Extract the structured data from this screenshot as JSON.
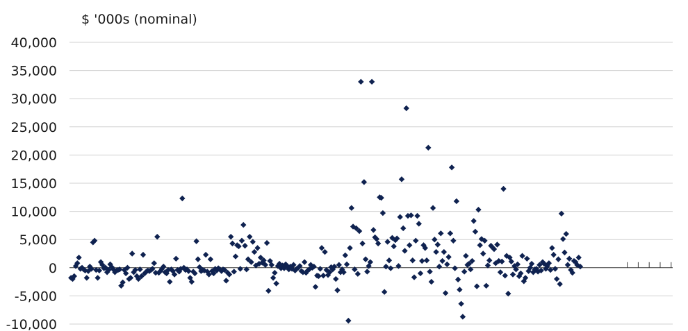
{
  "chart_data": {
    "type": "scatter",
    "unit_label": "$ '000s (nominal)",
    "ylim": [
      -10000,
      40000
    ],
    "yticks": [
      40000,
      35000,
      30000,
      25000,
      20000,
      15000,
      10000,
      5000,
      0,
      -5000,
      -10000
    ],
    "ytick_labels": [
      "40,000",
      "35,000",
      "30,000",
      "25,000",
      "20,000",
      "15,000",
      "10,000",
      "5,000",
      "0",
      "-5,000",
      "-10,000"
    ],
    "grid": true,
    "legend": "none",
    "marker_color": "#0f2250",
    "grid_color": "#d0d0d0",
    "axis_color": "#3a3a3a",
    "xlim": [
      0,
      385
    ],
    "x_tick_positions": [
      356,
      363,
      370,
      377,
      384
    ],
    "points": [
      [
        1,
        -1800
      ],
      [
        2,
        -2000
      ],
      [
        3,
        -1500
      ],
      [
        4,
        300
      ],
      [
        5,
        800
      ],
      [
        6,
        1800
      ],
      [
        7,
        -200
      ],
      [
        8,
        0
      ],
      [
        9,
        -300
      ],
      [
        10,
        -500
      ],
      [
        11,
        -1800
      ],
      [
        12,
        -600
      ],
      [
        13,
        200
      ],
      [
        14,
        -200
      ],
      [
        15,
        4500
      ],
      [
        16,
        4800
      ],
      [
        17,
        -400
      ],
      [
        18,
        -1800
      ],
      [
        19,
        -500
      ],
      [
        20,
        1000
      ],
      [
        21,
        500
      ],
      [
        22,
        -100
      ],
      [
        23,
        0
      ],
      [
        24,
        -800
      ],
      [
        25,
        -400
      ],
      [
        26,
        600
      ],
      [
        27,
        100
      ],
      [
        28,
        -300
      ],
      [
        29,
        -800
      ],
      [
        30,
        -500
      ],
      [
        31,
        -400
      ],
      [
        32,
        -300
      ],
      [
        33,
        -3200
      ],
      [
        34,
        -2600
      ],
      [
        35,
        -400
      ],
      [
        36,
        -1000
      ],
      [
        37,
        0
      ],
      [
        38,
        -2000
      ],
      [
        39,
        -1800
      ],
      [
        40,
        2500
      ],
      [
        41,
        -800
      ],
      [
        42,
        -400
      ],
      [
        43,
        -1500
      ],
      [
        44,
        -2000
      ],
      [
        45,
        -300
      ],
      [
        46,
        -1500
      ],
      [
        47,
        2300
      ],
      [
        48,
        -1000
      ],
      [
        49,
        -700
      ],
      [
        50,
        -500
      ],
      [
        51,
        -600
      ],
      [
        52,
        -400
      ],
      [
        53,
        -200
      ],
      [
        54,
        800
      ],
      [
        55,
        -900
      ],
      [
        56,
        5500
      ],
      [
        57,
        -900
      ],
      [
        58,
        -600
      ],
      [
        59,
        -200
      ],
      [
        60,
        200
      ],
      [
        61,
        -800
      ],
      [
        62,
        -1000
      ],
      [
        63,
        -400
      ],
      [
        64,
        -2500
      ],
      [
        65,
        -300
      ],
      [
        66,
        -600
      ],
      [
        67,
        -1200
      ],
      [
        68,
        1600
      ],
      [
        69,
        -400
      ],
      [
        70,
        -700
      ],
      [
        71,
        -200
      ],
      [
        72,
        12300
      ],
      [
        73,
        0
      ],
      [
        74,
        -400
      ],
      [
        75,
        -300
      ],
      [
        76,
        -600
      ],
      [
        77,
        -1800
      ],
      [
        78,
        -2500
      ],
      [
        79,
        -700
      ],
      [
        80,
        -1000
      ],
      [
        81,
        4700
      ],
      [
        82,
        1500
      ],
      [
        83,
        100
      ],
      [
        84,
        -600
      ],
      [
        85,
        -400
      ],
      [
        86,
        -500
      ],
      [
        87,
        2300
      ],
      [
        88,
        -700
      ],
      [
        89,
        -1200
      ],
      [
        90,
        1500
      ],
      [
        91,
        -600
      ],
      [
        92,
        -1000
      ],
      [
        93,
        -200
      ],
      [
        94,
        -500
      ],
      [
        95,
        -100
      ],
      [
        96,
        -300
      ],
      [
        97,
        -600
      ],
      [
        98,
        -300
      ],
      [
        99,
        -400
      ],
      [
        100,
        -2300
      ],
      [
        101,
        -900
      ],
      [
        102,
        -1200
      ],
      [
        103,
        5500
      ],
      [
        104,
        4300
      ],
      [
        105,
        -700
      ],
      [
        106,
        2000
      ],
      [
        107,
        4000
      ],
      [
        108,
        3800
      ],
      [
        109,
        -200
      ],
      [
        110,
        4800
      ],
      [
        111,
        7600
      ],
      [
        112,
        3900
      ],
      [
        113,
        -300
      ],
      [
        114,
        1500
      ],
      [
        115,
        5500
      ],
      [
        116,
        1000
      ],
      [
        117,
        4600
      ],
      [
        118,
        2800
      ],
      [
        119,
        400
      ],
      [
        120,
        3500
      ],
      [
        121,
        700
      ],
      [
        122,
        1800
      ],
      [
        123,
        900
      ],
      [
        124,
        1300
      ],
      [
        125,
        500
      ],
      [
        126,
        4400
      ],
      [
        127,
        -4100
      ],
      [
        128,
        1200
      ],
      [
        129,
        500
      ],
      [
        130,
        -1800
      ],
      [
        131,
        -900
      ],
      [
        132,
        -2800
      ],
      [
        133,
        300
      ],
      [
        134,
        700
      ],
      [
        135,
        -100
      ],
      [
        136,
        400
      ],
      [
        137,
        -100
      ],
      [
        138,
        600
      ],
      [
        139,
        300
      ],
      [
        140,
        -300
      ],
      [
        141,
        200
      ],
      [
        142,
        -200
      ],
      [
        143,
        500
      ],
      [
        144,
        -500
      ],
      [
        145,
        -200
      ],
      [
        146,
        0
      ],
      [
        147,
        300
      ],
      [
        148,
        -600
      ],
      [
        149,
        -800
      ],
      [
        150,
        1000
      ],
      [
        151,
        -900
      ],
      [
        152,
        -500
      ],
      [
        153,
        -300
      ],
      [
        154,
        500
      ],
      [
        155,
        0
      ],
      [
        156,
        200
      ],
      [
        157,
        -3400
      ],
      [
        158,
        -1400
      ],
      [
        159,
        -1500
      ],
      [
        160,
        -200
      ],
      [
        161,
        3500
      ],
      [
        162,
        -1400
      ],
      [
        163,
        2800
      ],
      [
        164,
        -400
      ],
      [
        165,
        -1300
      ],
      [
        166,
        -800
      ],
      [
        167,
        100
      ],
      [
        168,
        -300
      ],
      [
        169,
        200
      ],
      [
        170,
        -2000
      ],
      [
        171,
        -4000
      ],
      [
        172,
        500
      ],
      [
        173,
        -800
      ],
      [
        174,
        -300
      ],
      [
        175,
        -800
      ],
      [
        176,
        2200
      ],
      [
        177,
        600
      ],
      [
        178,
        -9400
      ],
      [
        179,
        3500
      ],
      [
        180,
        10600
      ],
      [
        181,
        7300
      ],
      [
        182,
        -300
      ],
      [
        183,
        7000
      ],
      [
        184,
        -1100
      ],
      [
        185,
        6500
      ],
      [
        186,
        33000
      ],
      [
        187,
        4300
      ],
      [
        188,
        15200
      ],
      [
        189,
        1500
      ],
      [
        190,
        -700
      ],
      [
        191,
        300
      ],
      [
        192,
        1000
      ],
      [
        193,
        33000
      ],
      [
        194,
        6700
      ],
      [
        195,
        5400
      ],
      [
        196,
        5100
      ],
      [
        197,
        4300
      ],
      [
        198,
        12500
      ],
      [
        199,
        12400
      ],
      [
        200,
        9700
      ],
      [
        201,
        -4300
      ],
      [
        202,
        200
      ],
      [
        203,
        4600
      ],
      [
        204,
        1300
      ],
      [
        205,
        -100
      ],
      [
        206,
        5300
      ],
      [
        207,
        3800
      ],
      [
        208,
        4900
      ],
      [
        209,
        5200
      ],
      [
        210,
        300
      ],
      [
        211,
        9000
      ],
      [
        212,
        15700
      ],
      [
        213,
        7000
      ],
      [
        214,
        3000
      ],
      [
        215,
        28300
      ],
      [
        216,
        9200
      ],
      [
        217,
        4000
      ],
      [
        218,
        9300
      ],
      [
        219,
        1300
      ],
      [
        220,
        -1700
      ],
      [
        221,
        4800
      ],
      [
        222,
        9200
      ],
      [
        223,
        7800
      ],
      [
        224,
        -1000
      ],
      [
        225,
        1200
      ],
      [
        226,
        4000
      ],
      [
        227,
        3500
      ],
      [
        228,
        1300
      ],
      [
        229,
        21300
      ],
      [
        230,
        -700
      ],
      [
        231,
        -2500
      ],
      [
        232,
        10600
      ],
      [
        233,
        5000
      ],
      [
        234,
        2800
      ],
      [
        235,
        4100
      ],
      [
        236,
        200
      ],
      [
        237,
        6100
      ],
      [
        238,
        1200
      ],
      [
        239,
        2800
      ],
      [
        240,
        -4500
      ],
      [
        241,
        600
      ],
      [
        242,
        1900
      ],
      [
        243,
        6100
      ],
      [
        244,
        17800
      ],
      [
        245,
        4800
      ],
      [
        246,
        -100
      ],
      [
        247,
        11800
      ],
      [
        248,
        -2100
      ],
      [
        249,
        -3900
      ],
      [
        250,
        -6400
      ],
      [
        251,
        -8700
      ],
      [
        252,
        -700
      ],
      [
        253,
        2100
      ],
      [
        254,
        500
      ],
      [
        255,
        700
      ],
      [
        256,
        -300
      ],
      [
        257,
        1200
      ],
      [
        258,
        8300
      ],
      [
        259,
        6400
      ],
      [
        260,
        -3300
      ],
      [
        261,
        10300
      ],
      [
        262,
        4000
      ],
      [
        263,
        5100
      ],
      [
        264,
        2500
      ],
      [
        265,
        4800
      ],
      [
        266,
        -3200
      ],
      [
        267,
        400
      ],
      [
        268,
        1300
      ],
      [
        269,
        3900
      ],
      [
        270,
        3600
      ],
      [
        271,
        3300
      ],
      [
        272,
        800
      ],
      [
        273,
        4100
      ],
      [
        274,
        1200
      ],
      [
        275,
        -800
      ],
      [
        276,
        1100
      ],
      [
        277,
        14000
      ],
      [
        278,
        -1400
      ],
      [
        279,
        2100
      ],
      [
        280,
        -4600
      ],
      [
        281,
        1800
      ],
      [
        282,
        1100
      ],
      [
        283,
        -1200
      ],
      [
        284,
        300
      ],
      [
        285,
        -300
      ],
      [
        286,
        600
      ],
      [
        287,
        -1500
      ],
      [
        288,
        -1000
      ],
      [
        289,
        2100
      ],
      [
        290,
        -2400
      ],
      [
        291,
        -1800
      ],
      [
        292,
        1600
      ],
      [
        293,
        -600
      ],
      [
        294,
        0
      ],
      [
        295,
        700
      ],
      [
        296,
        -800
      ],
      [
        297,
        -300
      ],
      [
        298,
        -200
      ],
      [
        299,
        -700
      ],
      [
        300,
        500
      ],
      [
        301,
        -500
      ],
      [
        302,
        1000
      ],
      [
        303,
        700
      ],
      [
        304,
        -200
      ],
      [
        305,
        300
      ],
      [
        306,
        800
      ],
      [
        307,
        -400
      ],
      [
        308,
        3500
      ],
      [
        309,
        2300
      ],
      [
        310,
        -200
      ],
      [
        311,
        -2000
      ],
      [
        312,
        1500
      ],
      [
        313,
        -2900
      ],
      [
        314,
        9600
      ],
      [
        315,
        5100
      ],
      [
        316,
        2700
      ],
      [
        317,
        6000
      ],
      [
        318,
        500
      ],
      [
        319,
        1600
      ],
      [
        320,
        -400
      ],
      [
        321,
        -900
      ],
      [
        322,
        1200
      ],
      [
        323,
        1000
      ],
      [
        324,
        500
      ],
      [
        325,
        1800
      ],
      [
        326,
        200
      ]
    ]
  }
}
